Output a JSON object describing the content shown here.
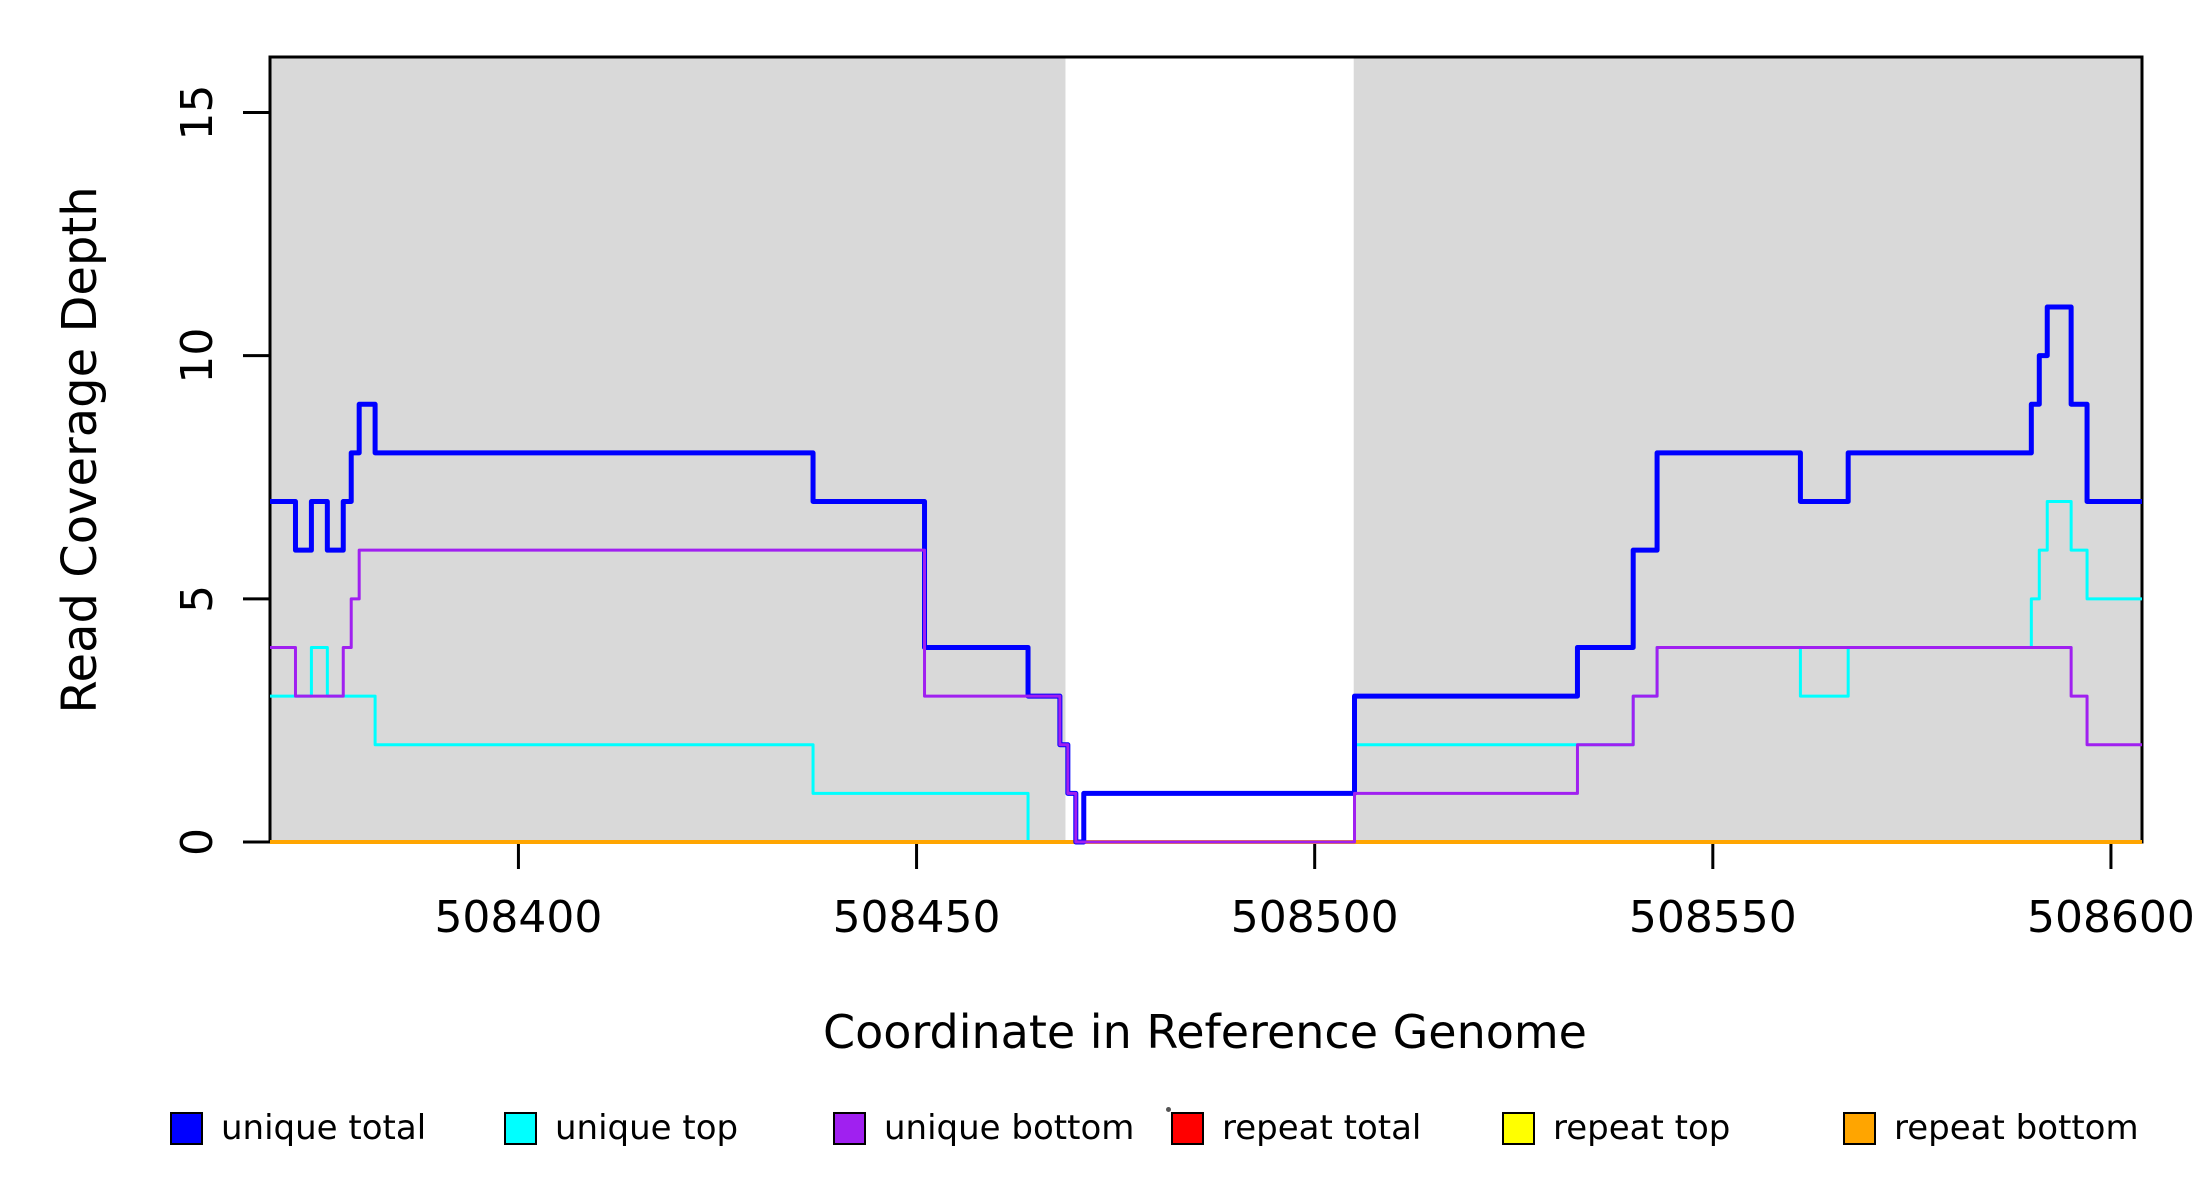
{
  "figure": {
    "xlabel": "Coordinate in Reference Genome",
    "ylabel": "Read Coverage Depth",
    "background_color": "#ffffff",
    "shading_color": "#d9d9d9",
    "axis_color": "#000000"
  },
  "chart_data": {
    "type": "line",
    "subtype": "step",
    "title": "",
    "xlabel": "Coordinate in Reference Genome",
    "ylabel": "Read Coverage Depth",
    "xlim": [
      508368.8,
      508603.9
    ],
    "ylim": [
      0,
      16.14
    ],
    "x_ticks": [
      508400,
      508450,
      508500,
      508550,
      508600
    ],
    "y_ticks": [
      0,
      5,
      10,
      15
    ],
    "grid": false,
    "legend_position": "bottom",
    "shaded_regions": [
      {
        "from": 508368.8,
        "to": 508468.7
      },
      {
        "from": 508504.9,
        "to": 508603.9
      }
    ],
    "series": [
      {
        "name": "repeat total",
        "color": "#ff0000",
        "width": 3,
        "points": [
          [
            508368.8,
            0
          ],
          [
            508603.9,
            0
          ]
        ]
      },
      {
        "name": "repeat top",
        "color": "#ffff00",
        "width": 3,
        "points": [
          [
            508368.8,
            0
          ],
          [
            508603.9,
            0
          ]
        ]
      },
      {
        "name": "unique top",
        "color": "#00ffff",
        "width": 3,
        "points": [
          [
            508368.8,
            3
          ],
          [
            508374,
            4
          ],
          [
            508376,
            3
          ],
          [
            508382,
            2
          ],
          [
            508437,
            1
          ],
          [
            508464,
            0
          ],
          [
            508471,
            1
          ],
          [
            508505,
            2
          ],
          [
            508540,
            3
          ],
          [
            508543,
            4
          ],
          [
            508561,
            3
          ],
          [
            508567,
            4
          ],
          [
            508590,
            5
          ],
          [
            508591,
            6
          ],
          [
            508592,
            7
          ],
          [
            508595,
            6
          ],
          [
            508597,
            5
          ],
          [
            508603.9,
            5
          ]
        ]
      },
      {
        "name": "repeat bottom",
        "color": "#ffa500",
        "width": 4,
        "points": [
          [
            508368.8,
            0
          ],
          [
            508603.9,
            0
          ]
        ]
      },
      {
        "name": "unique total",
        "color": "#0000ff",
        "width": 5,
        "points": [
          [
            508368.8,
            7
          ],
          [
            508372,
            6
          ],
          [
            508374,
            7
          ],
          [
            508376,
            6
          ],
          [
            508378,
            7
          ],
          [
            508379,
            8
          ],
          [
            508380,
            9
          ],
          [
            508382,
            8
          ],
          [
            508437,
            7
          ],
          [
            508451,
            4
          ],
          [
            508464,
            3
          ],
          [
            508468,
            2
          ],
          [
            508469,
            1
          ],
          [
            508470,
            0
          ],
          [
            508471,
            1
          ],
          [
            508505,
            3
          ],
          [
            508533,
            4
          ],
          [
            508540,
            6
          ],
          [
            508543,
            8
          ],
          [
            508561,
            7
          ],
          [
            508567,
            8
          ],
          [
            508590,
            9
          ],
          [
            508591,
            10
          ],
          [
            508592,
            11
          ],
          [
            508595,
            9
          ],
          [
            508597,
            7
          ],
          [
            508603.9,
            7
          ]
        ]
      },
      {
        "name": "unique bottom",
        "color": "#a020f0",
        "width": 3,
        "points": [
          [
            508368.8,
            4
          ],
          [
            508372,
            3
          ],
          [
            508378,
            4
          ],
          [
            508379,
            5
          ],
          [
            508380,
            6
          ],
          [
            508451,
            3
          ],
          [
            508468,
            2
          ],
          [
            508469,
            1
          ],
          [
            508470,
            0
          ],
          [
            508505,
            1
          ],
          [
            508533,
            2
          ],
          [
            508540,
            3
          ],
          [
            508543,
            4
          ],
          [
            508595,
            3
          ],
          [
            508597,
            2
          ],
          [
            508603.9,
            2
          ]
        ]
      }
    ],
    "legend": [
      {
        "label": "unique total",
        "color": "#0000ff"
      },
      {
        "label": "unique top",
        "color": "#00ffff"
      },
      {
        "label": "unique bottom",
        "color": "#a020f0"
      },
      {
        "label": "repeat total",
        "color": "#ff0000"
      },
      {
        "label": "repeat top",
        "color": "#ffff00"
      },
      {
        "label": "repeat bottom",
        "color": "#ffa500"
      }
    ],
    "artifact_dot": "·"
  }
}
